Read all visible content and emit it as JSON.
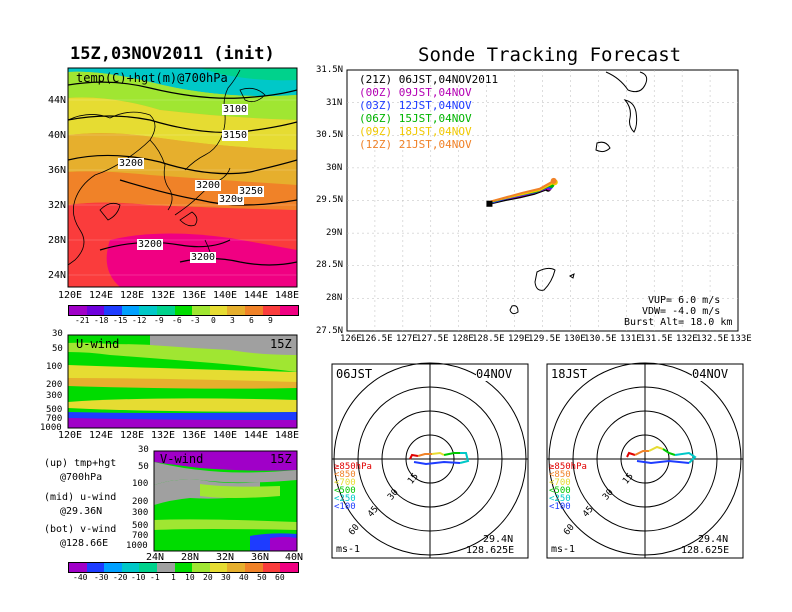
{
  "left_title": "15Z,03NOV2011 (init)",
  "main_title": "Sonde Tracking Forecast",
  "top_map": {
    "label": "temp(C)+hgt(m)@700hPa",
    "contour_labels": [
      "3100",
      "3150",
      "3200",
      "3200",
      "3200",
      "3200",
      "3200",
      "3250"
    ],
    "lat_labels": [
      "44N",
      "40N",
      "36N",
      "32N",
      "28N",
      "24N"
    ],
    "lon_labels": [
      "120E",
      "124E",
      "128E",
      "132E",
      "136E",
      "140E",
      "144E",
      "148E"
    ],
    "colorbar": [
      "-21",
      "-18",
      "-15",
      "-12",
      "-9",
      "-6",
      "-3",
      "0",
      "3",
      "6",
      "9"
    ],
    "colorbar_colors": [
      "#a000c8",
      "#6e00dc",
      "#1e3cff",
      "#00a0ff",
      "#00c8c8",
      "#00d28c",
      "#00dc00",
      "#a0e632",
      "#e6dc32",
      "#e6af2d",
      "#f08228",
      "#fa3c3c",
      "#f00082"
    ]
  },
  "u_panel": {
    "label": "U-wind",
    "time": "15Z",
    "p_labels": [
      "30",
      "50",
      "100",
      "200",
      "300",
      "500",
      "700",
      "1000"
    ],
    "lon_labels": [
      "120E",
      "124E",
      "128E",
      "132E",
      "136E",
      "140E",
      "144E",
      "148E"
    ]
  },
  "v_panel": {
    "label": "V-wind",
    "time": "15Z",
    "p_labels": [
      "30",
      "50",
      "100",
      "200",
      "300",
      "500",
      "700",
      "1000"
    ],
    "lat_labels": [
      "24N",
      "28N",
      "32N",
      "36N",
      "40N"
    ]
  },
  "legend_notes": [
    {
      "a": "(up) tmp+hgt",
      "b": "@700hPa"
    },
    {
      "a": "(mid) u-wind",
      "b": "@29.36N"
    },
    {
      "a": "(bot) v-wind",
      "b": "@128.66E"
    }
  ],
  "wind_colorbar": [
    "-40",
    "-30",
    "-20",
    "-10",
    "-1",
    "1",
    "10",
    "20",
    "30",
    "40",
    "50",
    "60"
  ],
  "wind_colorbar_colors": [
    "#a000c8",
    "#1e3cff",
    "#00a0ff",
    "#00c8c8",
    "#00d28c",
    "#a0a0a0",
    "#00dc00",
    "#a0e632",
    "#e6dc32",
    "#e6af2d",
    "#f08228",
    "#fa3c3c",
    "#f00082"
  ],
  "track_map": {
    "lat_labels": [
      "31.5N",
      "31N",
      "30.5N",
      "30N",
      "29.5N",
      "29N",
      "28.5N",
      "28N",
      "27.5N"
    ],
    "lon_labels": [
      "126E",
      "126.5E",
      "127E",
      "127.5E",
      "128E",
      "128.5E",
      "129E",
      "129.5E",
      "130E",
      "130.5E",
      "131E",
      "131.5E",
      "132E",
      "132.5E",
      "133E"
    ],
    "launches": [
      {
        "text": "(21Z) 06JST,04NOV2011",
        "color": "#000000"
      },
      {
        "text": "(00Z) 09JST,04NOV",
        "color": "#b400b4"
      },
      {
        "text": "(03Z) 12JST,04NOV",
        "color": "#1e3cff"
      },
      {
        "text": "(06Z) 15JST,04NOV",
        "color": "#00b400"
      },
      {
        "text": "(09Z) 18JST,04NOV",
        "color": "#f0c800"
      },
      {
        "text": "(12Z) 21JST,04NOV",
        "color": "#f08228"
      }
    ],
    "params": [
      "VUP= 6.0 m/s",
      "VDW= -4.0 m/s",
      "Burst Alt= 18.0 km"
    ]
  },
  "hodo_left": {
    "time": "06JST",
    "date": "04NOV",
    "ring_labels": [
      "15",
      "30",
      "45",
      "60"
    ],
    "levels": [
      {
        "text": "≥850hPa",
        "color": "#e00000"
      },
      {
        "text": "<850",
        "color": "#f08228"
      },
      {
        "text": "<700",
        "color": "#e6dc32"
      },
      {
        "text": "<500",
        "color": "#00c800"
      },
      {
        "text": "<250",
        "color": "#00c8c8"
      },
      {
        "text": "<100",
        "color": "#1e3cff"
      }
    ],
    "unit": "ms-1",
    "lat": "29.4N",
    "lon": "128.625E"
  },
  "hodo_right": {
    "time": "18JST",
    "date": "04NOV",
    "ring_labels": [
      "15",
      "30",
      "45",
      "60"
    ],
    "levels": [
      {
        "text": "≥850hPa",
        "color": "#e00000"
      },
      {
        "text": "<850",
        "color": "#f08228"
      },
      {
        "text": "<700",
        "color": "#e6dc32"
      },
      {
        "text": "<500",
        "color": "#00c800"
      },
      {
        "text": "<250",
        "color": "#00c8c8"
      },
      {
        "text": "<100",
        "color": "#1e3cff"
      }
    ],
    "unit": "ms-1",
    "lat": "29.4N",
    "lon": "128.625E"
  },
  "chart_data": [
    {
      "type": "heatmap",
      "title": "temp(C)+hgt(m)@700hPa",
      "x_ticks": [
        "120E",
        "124E",
        "128E",
        "132E",
        "136E",
        "140E",
        "144E",
        "148E"
      ],
      "y_ticks": [
        "44N",
        "40N",
        "36N",
        "32N",
        "28N",
        "24N"
      ],
      "contour_values": [
        3100,
        3150,
        3200,
        3250
      ],
      "colorbar_levels": [
        -21,
        -18,
        -15,
        -12,
        -9,
        -6,
        -3,
        0,
        3,
        6,
        9
      ]
    },
    {
      "type": "heatmap",
      "title": "U-wind",
      "x_ticks": [
        "120E",
        "124E",
        "128E",
        "132E",
        "136E",
        "140E",
        "144E",
        "148E"
      ],
      "y_ticks": [
        30,
        50,
        100,
        200,
        300,
        500,
        700,
        1000
      ]
    },
    {
      "type": "heatmap",
      "title": "V-wind",
      "x_ticks": [
        "24N",
        "28N",
        "32N",
        "36N",
        "40N"
      ],
      "y_ticks": [
        30,
        50,
        100,
        200,
        300,
        500,
        700,
        1000
      ],
      "colorbar_levels": [
        -40,
        -30,
        -20,
        -10,
        -1,
        1,
        10,
        20,
        30,
        40,
        50,
        60
      ]
    },
    {
      "type": "line",
      "title": "Sonde Tracking Forecast",
      "xlim": [
        126,
        133
      ],
      "ylim": [
        27.5,
        31.5
      ],
      "series": [
        {
          "name": "(21Z) 06JST,04NOV2011",
          "x": [
            128.55,
            128.8,
            129.1,
            129.35,
            129.6
          ],
          "y": [
            29.45,
            29.5,
            29.55,
            29.6,
            29.68
          ]
        },
        {
          "name": "(00Z) 09JST,04NOV",
          "x": [
            128.55,
            128.8,
            129.1,
            129.35,
            129.62
          ],
          "y": [
            29.46,
            29.52,
            29.57,
            29.62,
            29.7
          ]
        },
        {
          "name": "(03Z) 12JST,04NOV",
          "x": [
            128.55,
            128.8,
            129.1,
            129.38,
            129.64
          ],
          "y": [
            29.46,
            29.52,
            29.58,
            29.63,
            29.72
          ]
        },
        {
          "name": "(06Z) 15JST,04NOV",
          "x": [
            128.55,
            128.8,
            129.1,
            129.4,
            129.66
          ],
          "y": [
            29.47,
            29.53,
            29.59,
            29.64,
            29.74
          ]
        },
        {
          "name": "(09Z) 18JST,04NOV",
          "x": [
            128.55,
            128.85,
            129.15,
            129.45,
            129.72
          ],
          "y": [
            29.48,
            29.54,
            29.6,
            29.66,
            29.78
          ]
        },
        {
          "name": "(12Z) 21JST,04NOV",
          "x": [
            128.55,
            128.85,
            129.15,
            129.45,
            129.7
          ],
          "y": [
            29.48,
            29.55,
            29.62,
            29.68,
            29.8
          ]
        }
      ]
    }
  ]
}
